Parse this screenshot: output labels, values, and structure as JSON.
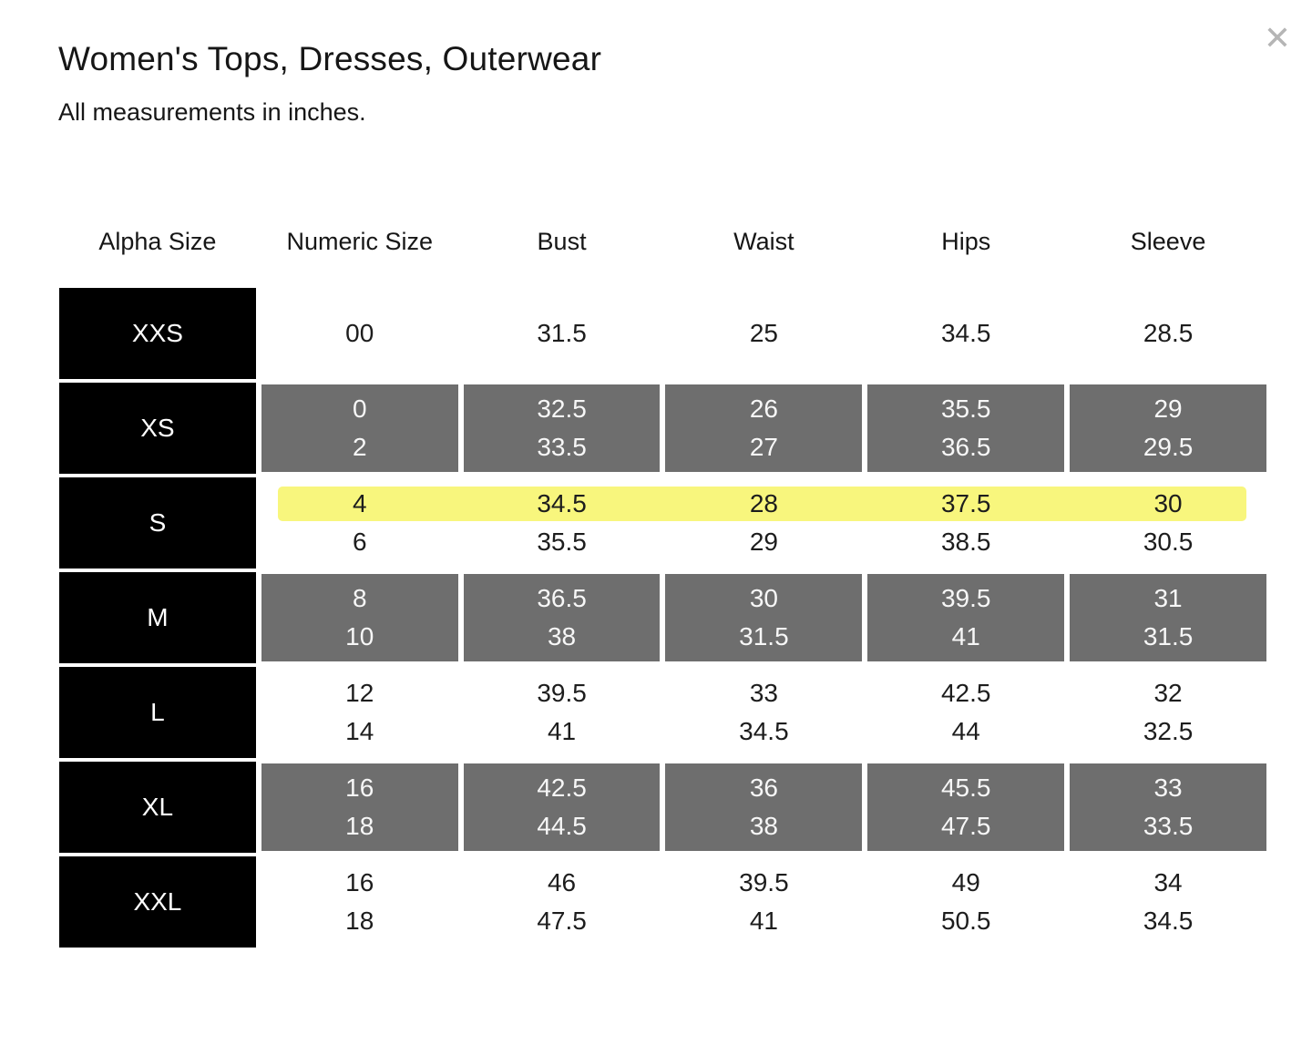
{
  "modal": {
    "title": "Women's Tops, Dresses, Outerwear",
    "subtitle": "All measurements in inches.",
    "close_icon": "✕"
  },
  "colors": {
    "black_cell": "#000000",
    "gray_cell": "#6e6e6e",
    "highlight": "#f8f67d",
    "close_icon": "#b5b5b5"
  },
  "highlight": {
    "alpha_size": "S",
    "numeric_size": "4",
    "color": "#f8f67d"
  },
  "table": {
    "columns": [
      "Alpha Size",
      "Numeric Size",
      "Bust",
      "Waist",
      "Hips",
      "Sleeve"
    ],
    "rows": [
      {
        "alpha": "XXS",
        "shade": "white",
        "numeric": [
          "00"
        ],
        "bust": [
          "31.5"
        ],
        "waist": [
          "25"
        ],
        "hips": [
          "34.5"
        ],
        "sleeve": [
          "28.5"
        ]
      },
      {
        "alpha": "XS",
        "shade": "gray",
        "numeric": [
          "0",
          "2"
        ],
        "bust": [
          "32.5",
          "33.5"
        ],
        "waist": [
          "26",
          "27"
        ],
        "hips": [
          "35.5",
          "36.5"
        ],
        "sleeve": [
          "29",
          "29.5"
        ]
      },
      {
        "alpha": "S",
        "shade": "white",
        "numeric": [
          "4",
          "6"
        ],
        "bust": [
          "34.5",
          "35.5"
        ],
        "waist": [
          "28",
          "29"
        ],
        "hips": [
          "37.5",
          "38.5"
        ],
        "sleeve": [
          "30",
          "30.5"
        ]
      },
      {
        "alpha": "M",
        "shade": "gray",
        "numeric": [
          "8",
          "10"
        ],
        "bust": [
          "36.5",
          "38"
        ],
        "waist": [
          "30",
          "31.5"
        ],
        "hips": [
          "39.5",
          "41"
        ],
        "sleeve": [
          "31",
          "31.5"
        ]
      },
      {
        "alpha": "L",
        "shade": "white",
        "numeric": [
          "12",
          "14"
        ],
        "bust": [
          "39.5",
          "41"
        ],
        "waist": [
          "33",
          "34.5"
        ],
        "hips": [
          "42.5",
          "44"
        ],
        "sleeve": [
          "32",
          "32.5"
        ]
      },
      {
        "alpha": "XL",
        "shade": "gray",
        "numeric": [
          "16",
          "18"
        ],
        "bust": [
          "42.5",
          "44.5"
        ],
        "waist": [
          "36",
          "38"
        ],
        "hips": [
          "45.5",
          "47.5"
        ],
        "sleeve": [
          "33",
          "33.5"
        ]
      },
      {
        "alpha": "XXL",
        "shade": "white",
        "numeric": [
          "16",
          "18"
        ],
        "bust": [
          "46",
          "47.5"
        ],
        "waist": [
          "39.5",
          "41"
        ],
        "hips": [
          "49",
          "50.5"
        ],
        "sleeve": [
          "34",
          "34.5"
        ]
      }
    ]
  }
}
